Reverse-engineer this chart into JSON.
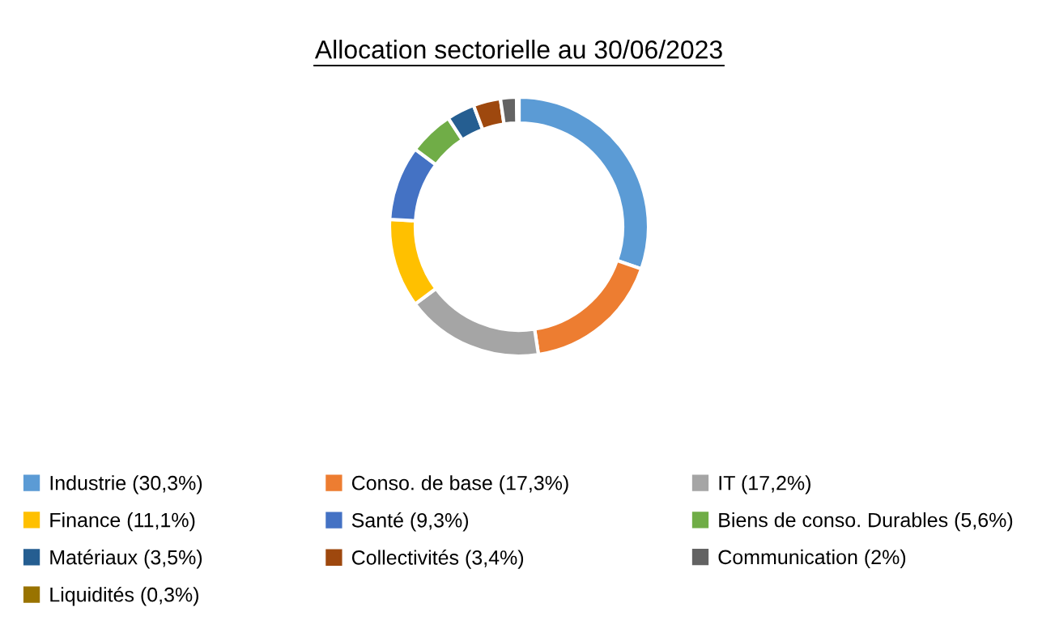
{
  "chart_data": {
    "type": "donut",
    "title": "Allocation sectorielle au 30/06/2023",
    "categories": [
      "Industrie (30,3%)",
      "Conso. de base (17,3%)",
      "IT (17,2%)",
      "Finance (11,1%)",
      "Santé (9,3%)",
      "Biens de conso. Durables (5,6%)",
      "Matériaux (3,5%)",
      "Collectivités (3,4%)",
      "Communication (2%)",
      "Liquidités (0,3%)"
    ],
    "values": [
      30.3,
      17.3,
      17.2,
      11.1,
      9.3,
      5.6,
      3.5,
      3.4,
      2,
      0.3
    ],
    "colors": [
      "#5b9bd5",
      "#ed7d31",
      "#a5a5a5",
      "#ffc000",
      "#4472c4",
      "#70ad47",
      "#255e91",
      "#9e480e",
      "#636363",
      "#997300"
    ],
    "legend": "bottom"
  }
}
